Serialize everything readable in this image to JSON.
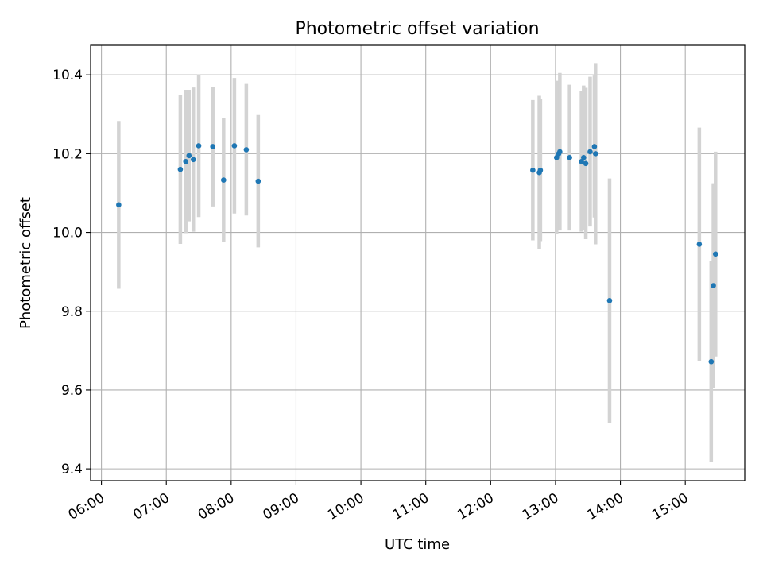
{
  "chart_data": {
    "type": "scatter",
    "title": "Photometric offset variation",
    "xlabel": "UTC time",
    "ylabel": "Photometric offset",
    "x_axis_type": "time",
    "xlim": [
      "05:50",
      "15:55"
    ],
    "ylim": [
      9.37,
      10.475
    ],
    "grid": true,
    "errorbar_color": "#d3d3d3",
    "point_color": "#1f77b4",
    "x_ticks": [
      "06:00",
      "07:00",
      "08:00",
      "09:00",
      "10:00",
      "11:00",
      "12:00",
      "13:00",
      "14:00",
      "15:00"
    ],
    "y_ticks": [
      "9.4",
      "9.6",
      "9.8",
      "10.0",
      "10.2",
      "10.4"
    ],
    "points": [
      {
        "x": "06:16",
        "y": 10.07,
        "err": 0.213
      },
      {
        "x": "07:13",
        "y": 10.16,
        "err": 0.189
      },
      {
        "x": "07:18",
        "y": 10.18,
        "err": 0.182
      },
      {
        "x": "07:21",
        "y": 10.195,
        "err": 0.167
      },
      {
        "x": "07:25",
        "y": 10.185,
        "err": 0.183
      },
      {
        "x": "07:30",
        "y": 10.22,
        "err": 0.181
      },
      {
        "x": "07:43",
        "y": 10.218,
        "err": 0.152
      },
      {
        "x": "07:53",
        "y": 10.133,
        "err": 0.157
      },
      {
        "x": "08:03",
        "y": 10.22,
        "err": 0.172
      },
      {
        "x": "08:14",
        "y": 10.21,
        "err": 0.167
      },
      {
        "x": "08:25",
        "y": 10.13,
        "err": 0.168
      },
      {
        "x": "12:39",
        "y": 10.158,
        "err": 0.178
      },
      {
        "x": "12:45",
        "y": 10.152,
        "err": 0.195
      },
      {
        "x": "12:46",
        "y": 10.158,
        "err": 0.18
      },
      {
        "x": "13:01",
        "y": 10.19,
        "err": 0.195
      },
      {
        "x": "13:03",
        "y": 10.2,
        "err": 0.18
      },
      {
        "x": "13:04",
        "y": 10.205,
        "err": 0.2
      },
      {
        "x": "13:13",
        "y": 10.19,
        "err": 0.185
      },
      {
        "x": "13:24",
        "y": 10.18,
        "err": 0.178
      },
      {
        "x": "13:26",
        "y": 10.19,
        "err": 0.183
      },
      {
        "x": "13:28",
        "y": 10.175,
        "err": 0.192
      },
      {
        "x": "13:32",
        "y": 10.205,
        "err": 0.19
      },
      {
        "x": "13:36",
        "y": 10.218,
        "err": 0.18
      },
      {
        "x": "13:37",
        "y": 10.2,
        "err": 0.23
      },
      {
        "x": "13:50",
        "y": 9.827,
        "err": 0.31
      },
      {
        "x": "15:13",
        "y": 9.97,
        "err": 0.296
      },
      {
        "x": "15:24",
        "y": 9.672,
        "err": 0.255
      },
      {
        "x": "15:26",
        "y": 9.865,
        "err": 0.26
      },
      {
        "x": "15:28",
        "y": 9.945,
        "err": 0.26
      }
    ]
  }
}
